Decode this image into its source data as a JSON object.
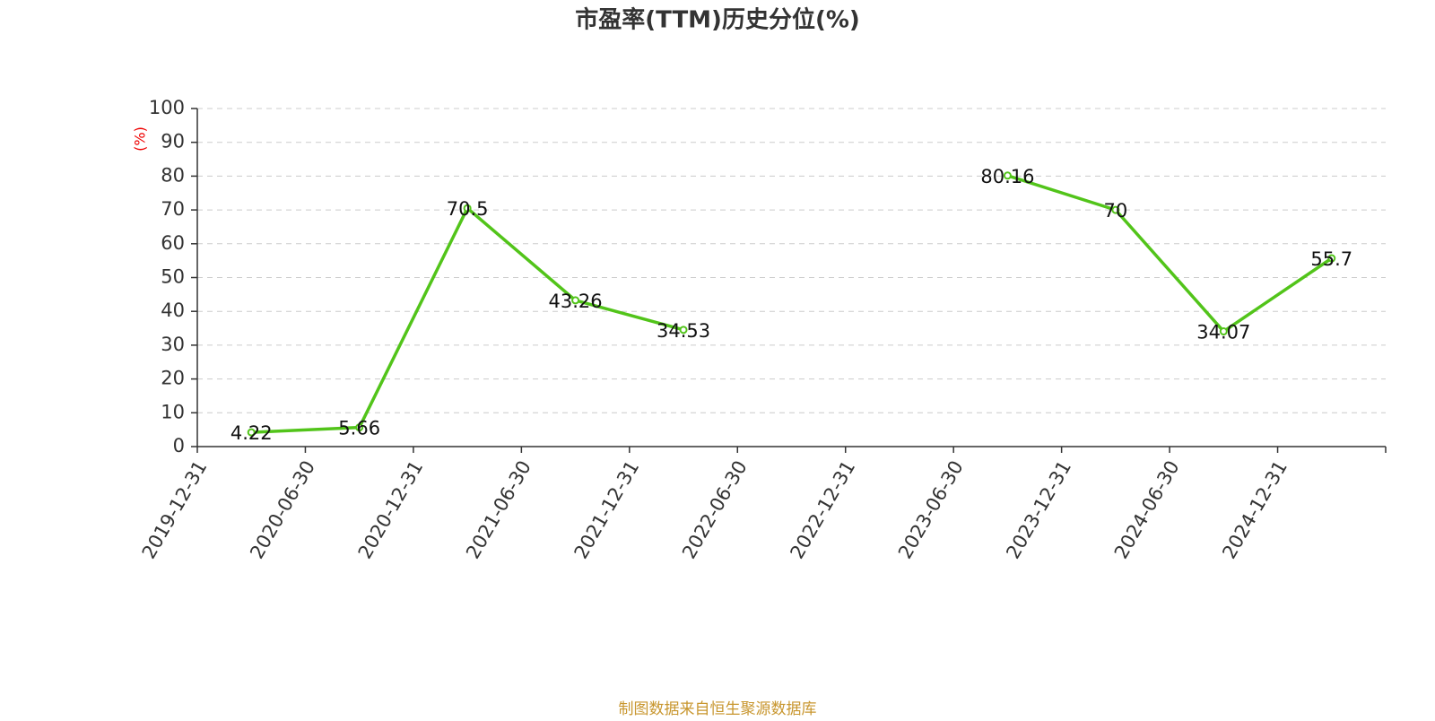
{
  "chart_data": {
    "type": "line",
    "title": "市盈率(TTM)历史分位(%)",
    "y_label": "(%)",
    "source": "制图数据来自恒生聚源数据库",
    "categories": [
      "2019-12-31",
      "2020-06-30",
      "2020-12-31",
      "2021-06-30",
      "2021-12-31",
      "2022-06-30",
      "2022-12-31",
      "2023-06-30",
      "2023-12-31",
      "2024-06-30",
      "2024-12-31"
    ],
    "series": [
      {
        "name": "市盈率(TTM)历史分位",
        "color": "#52c41a",
        "values": [
          4.22,
          5.66,
          70.5,
          43.26,
          34.53,
          null,
          null,
          80.16,
          70,
          34.07,
          55.7
        ]
      }
    ],
    "ylim": [
      0,
      100
    ],
    "yticks": [
      0,
      10,
      20,
      30,
      40,
      50,
      60,
      70,
      80,
      90,
      100
    ],
    "grid": true
  }
}
